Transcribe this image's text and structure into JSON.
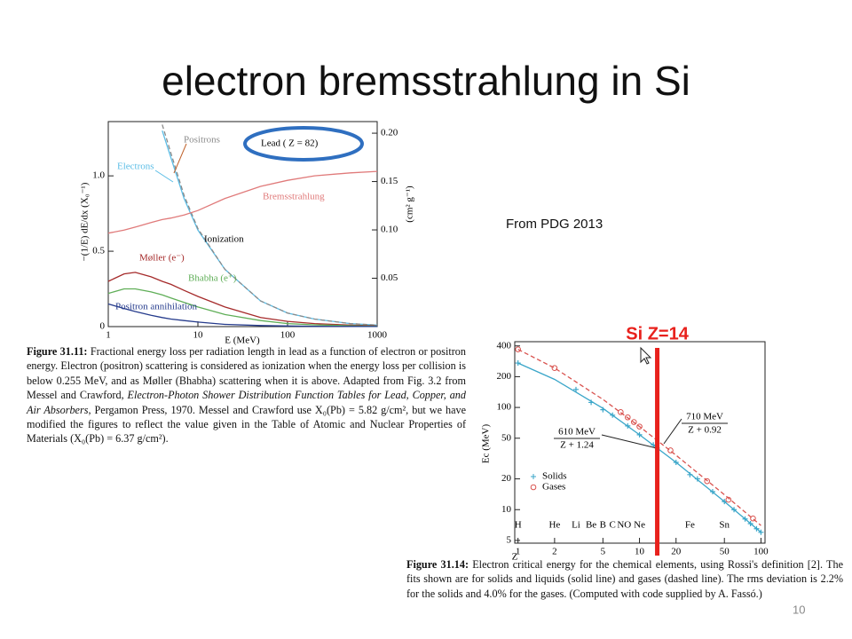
{
  "title": "electron bremsstrahlung in Si",
  "source_note": "From PDG 2013",
  "page_number": "10",
  "chart_data": [
    {
      "type": "line",
      "x_label": "E (MeV)",
      "y_label": "−(1/E) dE/dx (X₀⁻¹)",
      "y2_label": "(cm² g⁻¹)",
      "annotations": [
        "Lead ( Z = 82)",
        "Ionization"
      ],
      "log_x": true,
      "log_y": false,
      "xlim": [
        1,
        1000
      ],
      "xticks": [
        1,
        10,
        100,
        1000
      ],
      "ylim": [
        0,
        1.36
      ],
      "yticks": [
        0,
        0.5,
        {
          "value": 1,
          "label": "1.0"
        }
      ],
      "y2lim": [
        0,
        0.212
      ],
      "y2ticks": [
        0.05,
        {
          "value": 0.1,
          "label": "0.10"
        },
        0.15,
        {
          "value": 0.2,
          "label": "0.20"
        }
      ],
      "x": [
        1,
        1.5,
        2,
        3,
        4,
        5,
        7,
        10,
        20,
        50,
        100,
        200,
        500,
        1000
      ],
      "series": [
        {
          "name": "Electrons",
          "color": "#5bbde6",
          "dash": false,
          "values": [
            null,
            null,
            null,
            null,
            1.3,
            1.12,
            0.85,
            0.64,
            0.38,
            0.17,
            0.09,
            0.05,
            0.02,
            0.01
          ]
        },
        {
          "name": "Positrons",
          "color": "#8a8a8a",
          "dash": true,
          "values": [
            null,
            null,
            null,
            null,
            1.34,
            1.15,
            0.87,
            0.65,
            0.38,
            0.17,
            0.09,
            0.05,
            0.02,
            0.01
          ]
        },
        {
          "name": "Bremsstrahlung",
          "color": "#e07a7a",
          "dash": false,
          "values": [
            0.62,
            0.64,
            0.66,
            0.69,
            0.71,
            0.72,
            0.74,
            0.77,
            0.85,
            0.93,
            0.97,
            1.0,
            1.02,
            1.03
          ]
        },
        {
          "name": "Møller (e⁻)",
          "color": "#a52a2a",
          "dash": false,
          "values": [
            0.3,
            0.35,
            0.36,
            0.33,
            0.3,
            0.28,
            0.24,
            0.2,
            0.13,
            0.06,
            0.035,
            0.02,
            0.01,
            0.005
          ]
        },
        {
          "name": "Bhabha (e⁺)",
          "color": "#5fae57",
          "dash": false,
          "values": [
            0.22,
            0.25,
            0.25,
            0.23,
            0.21,
            0.19,
            0.16,
            0.13,
            0.08,
            0.04,
            0.02,
            0.012,
            0.006,
            0.003
          ]
        },
        {
          "name": "Positron annihilation",
          "color": "#253b8c",
          "dash": false,
          "values": [
            0.15,
            0.12,
            0.1,
            0.075,
            0.06,
            0.05,
            0.04,
            0.03,
            0.015,
            0.007,
            0.004,
            0.002,
            0.001,
            0.0005
          ]
        }
      ],
      "caption": [
        {
          "text": "Figure 31.11:",
          "style": "bold"
        },
        {
          "text": " Fractional energy loss per radiation length in lead as a function of electron or positron energy. Electron (positron) scattering is considered as ionization when the energy loss per collision is below 0.255 MeV, and as Møller (Bhabha) scattering when it is above. Adapted from Fig. 3.2 from Messel and Crawford, ",
          "style": "normal"
        },
        {
          "text": "Electron-Photon Shower Distribution Function Tables for Lead, Copper, and Air Absorbers",
          "style": "italic"
        },
        {
          "text": ", Pergamon Press, 1970. Messel and Crawford use X₀(Pb) = 5.82 g/cm², but we have modified the figures to reflect the value given in the Table of Atomic and Nuclear Properties of Materials (X₀(Pb) = 6.37 g/cm²).",
          "style": "normal"
        }
      ]
    },
    {
      "type": "scatter",
      "x_label": "Z",
      "y_label": "Ec (MeV)",
      "log_x": true,
      "log_y": true,
      "xlim": [
        0.94,
        108
      ],
      "xticks": [
        1,
        2,
        5,
        10,
        20,
        50,
        100
      ],
      "ylim": [
        4.7,
        440
      ],
      "yticks": [
        5,
        10,
        20,
        50,
        100,
        200,
        400
      ],
      "series": [
        {
          "name": "Solids",
          "color": "#3aa6c9",
          "mode": "markers",
          "marker": "plus",
          "x": [
            1,
            3,
            4,
            5,
            6,
            8,
            10,
            13,
            14,
            20,
            26,
            30,
            40,
            50,
            60,
            74,
            82,
            92,
            100
          ],
          "values": [
            272,
            150,
            112,
            95,
            84,
            66,
            54,
            43,
            40,
            29,
            22,
            20,
            15,
            12,
            10,
            8.1,
            7.3,
            6.5,
            6.0
          ]
        },
        {
          "name": "Gases",
          "color": "#d9534f",
          "mode": "markers",
          "marker": "circle",
          "x": [
            1,
            2,
            7,
            8,
            9,
            10,
            18,
            36,
            54,
            86
          ],
          "values": [
            370,
            243,
            90,
            80,
            72,
            65,
            38,
            19,
            12.5,
            8.2
          ]
        },
        {
          "color": "#3aa6c9",
          "mode": "line",
          "dash": false,
          "label": [
            "610 MeV",
            "Z + 1.24"
          ],
          "x": [
            1,
            2,
            5,
            10,
            20,
            50,
            100
          ],
          "values": [
            272,
            188,
            98,
            54,
            29,
            12,
            6.0
          ]
        },
        {
          "color": "#d9534f",
          "mode": "line",
          "dash": true,
          "label": [
            "710 MeV",
            "Z + 0.92"
          ],
          "x": [
            1,
            2,
            5,
            10,
            20,
            50,
            100
          ],
          "values": [
            370,
            243,
            120,
            65,
            34,
            14,
            7.0
          ]
        }
      ],
      "element_labels": [
        {
          "label": "H",
          "z": 1
        },
        {
          "label": "He",
          "z": 2
        },
        {
          "label": "Li",
          "z": 3
        },
        {
          "label": "Be",
          "z": 4
        },
        {
          "label": "B",
          "z": 5
        },
        {
          "label": "C",
          "z": 6
        },
        {
          "label": "N",
          "z": 7
        },
        {
          "label": "O",
          "z": 8
        },
        {
          "label": "Ne",
          "z": 10
        },
        {
          "label": "Fe",
          "z": 26
        },
        {
          "label": "Sn",
          "z": 50
        }
      ],
      "marker_line": {
        "x": 14,
        "label": "Si Z=14",
        "color": "#e8211c"
      },
      "caption": [
        {
          "text": "Figure 31.14:",
          "style": "bold"
        },
        {
          "text": " Electron critical energy for the chemical elements, using Rossi's definition [2]. The fits shown are for solids and liquids (solid line) and gases (dashed line). The rms deviation is 2.2% for the solids and 4.0% for the gases. (Computed with code supplied by A. Fassó.)",
          "style": "normal"
        }
      ]
    }
  ]
}
